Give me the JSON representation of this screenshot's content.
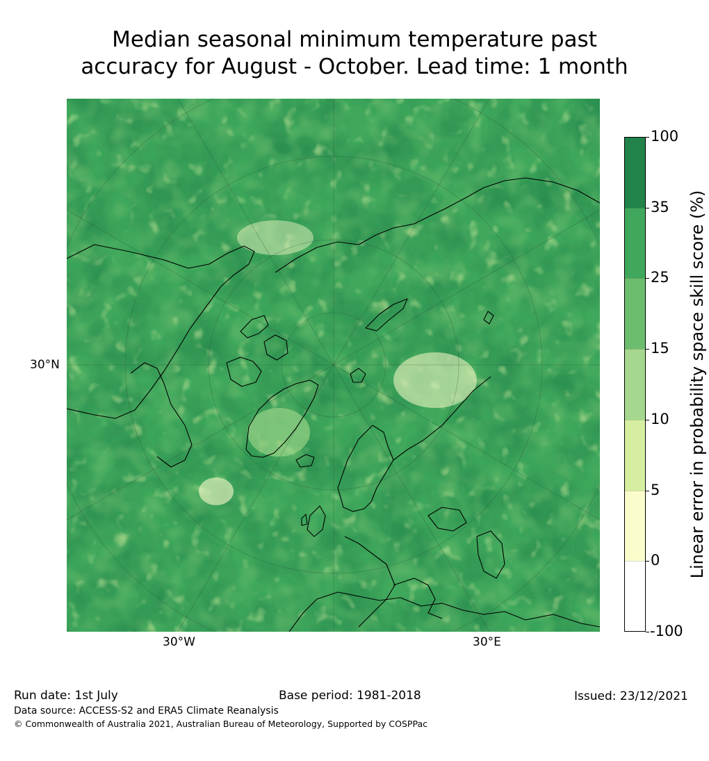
{
  "title": {
    "line1": "Median seasonal minimum temperature past",
    "line2": "accuracy for August - October. Lead time: 1 month"
  },
  "map": {
    "lat_label": "30°N",
    "lon_labels": [
      "30°W",
      "30°E"
    ],
    "land_tones": [
      "#21834a",
      "#40a85c",
      "#6dbd6e",
      "#a5d88e",
      "#d6eea0",
      "#fbfccb"
    ]
  },
  "colorbar": {
    "label": "Linear error in probability space skill score (%)",
    "ticks": [
      "100",
      "35",
      "25",
      "15",
      "10",
      "5",
      "0",
      "-100"
    ],
    "segments": [
      {
        "from": 35,
        "to": 100,
        "color": "#21834a"
      },
      {
        "from": 25,
        "to": 35,
        "color": "#40a85c"
      },
      {
        "from": 15,
        "to": 25,
        "color": "#6dbd6e"
      },
      {
        "from": 10,
        "to": 15,
        "color": "#a5d88e"
      },
      {
        "from": 5,
        "to": 10,
        "color": "#d6eea0"
      },
      {
        "from": 0,
        "to": 5,
        "color": "#fbfccb"
      },
      {
        "from": -100,
        "to": 0,
        "color": "#ffffff"
      }
    ]
  },
  "footer": {
    "run_date": "Run date: 1st July",
    "base_period": "Base period: 1981-2018",
    "issued": "Issued: 23/12/2021",
    "data_source": "Data source: ACCESS-S2 and ERA5 Climate Reanalysis",
    "copyright": "© Commonwealth of Australia 2021, Australian Bureau of Meteorology, Supported by COSPPac"
  }
}
